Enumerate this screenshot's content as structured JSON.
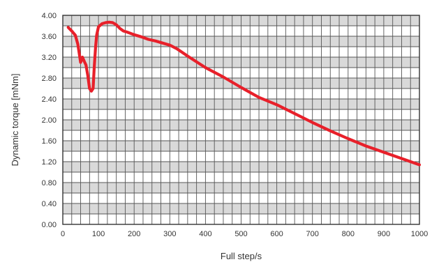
{
  "chart_data": {
    "type": "line",
    "xlabel": "Full step/s",
    "ylabel": "Dynamic torque [mNm]",
    "xlim": [
      0,
      1000
    ],
    "ylim": [
      0,
      4.0
    ],
    "x_ticks": [
      "0",
      "100",
      "200",
      "300",
      "400",
      "500",
      "600",
      "700",
      "800",
      "900",
      "1000"
    ],
    "y_ticks": [
      "0.00",
      "0.40",
      "0.80",
      "1.20",
      "1.60",
      "2.00",
      "2.40",
      "2.80",
      "3.20",
      "3.60",
      "4.00"
    ],
    "grid": true,
    "series": [
      {
        "color": "#e8202a",
        "x": [
          15,
          25,
          35,
          42,
          50,
          55,
          60,
          65,
          70,
          75,
          80,
          85,
          88,
          92,
          95,
          100,
          110,
          120,
          130,
          140,
          150,
          160,
          170,
          180,
          200,
          220,
          240,
          260,
          280,
          300,
          320,
          350,
          400,
          450,
          500,
          550,
          600,
          650,
          700,
          750,
          800,
          850,
          900,
          950,
          1000
        ],
        "y": [
          3.77,
          3.7,
          3.62,
          3.45,
          3.1,
          3.2,
          3.12,
          3.05,
          2.85,
          2.6,
          2.55,
          2.6,
          3.0,
          3.4,
          3.62,
          3.78,
          3.84,
          3.86,
          3.87,
          3.86,
          3.82,
          3.75,
          3.7,
          3.68,
          3.63,
          3.59,
          3.54,
          3.51,
          3.47,
          3.43,
          3.36,
          3.22,
          3.0,
          2.82,
          2.62,
          2.43,
          2.29,
          2.12,
          1.95,
          1.79,
          1.64,
          1.5,
          1.38,
          1.26,
          1.14
        ]
      }
    ]
  },
  "colors": {
    "line": "#e8202a",
    "grid": "#555555",
    "band": "#d9d9d9",
    "frame": "#333333"
  }
}
